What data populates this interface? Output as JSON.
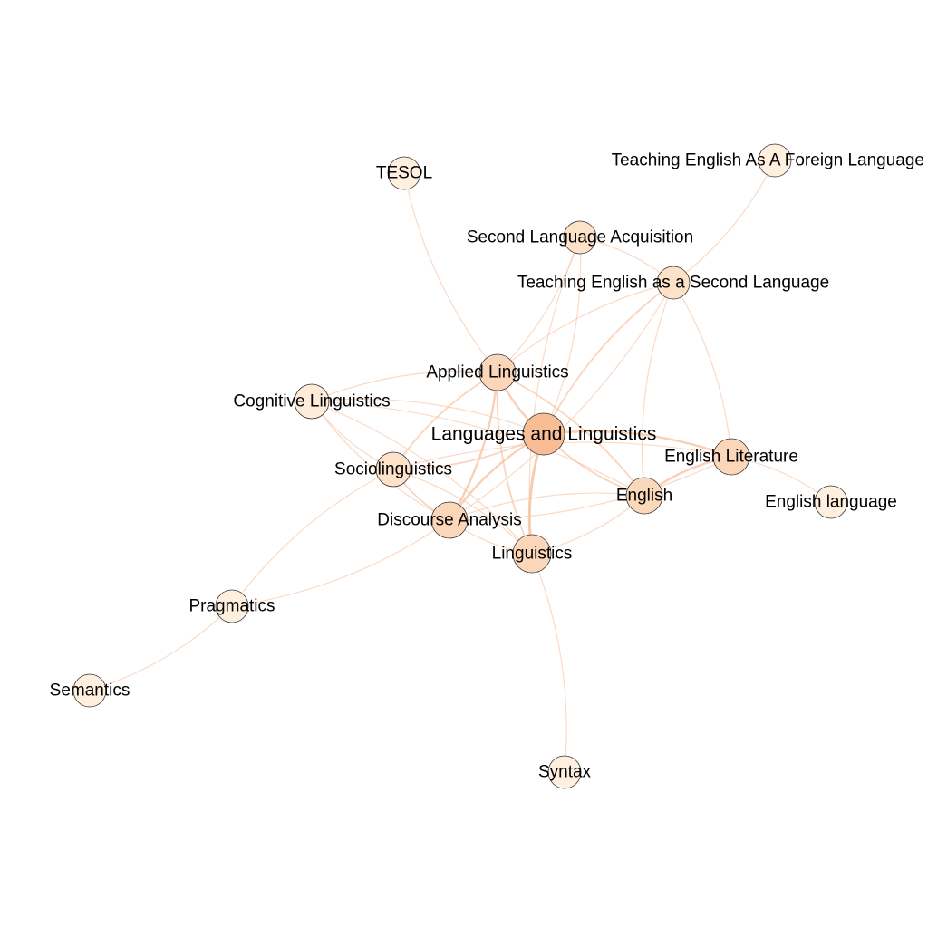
{
  "graph": {
    "nodes": [
      {
        "id": "languages",
        "label": "Languages and Linguistics",
        "color": "#f9bd95",
        "weight": 5
      },
      {
        "id": "applied",
        "label": "Applied Linguistics",
        "color": "#fcd6b8",
        "weight": 4
      },
      {
        "id": "english_lit",
        "label": "English Literature",
        "color": "#fcd6b8",
        "weight": 4
      },
      {
        "id": "english",
        "label": "English",
        "color": "#fcd8ba",
        "weight": 4
      },
      {
        "id": "discourse",
        "label": "Discourse Analysis",
        "color": "#fcd6b8",
        "weight": 4
      },
      {
        "id": "linguistics",
        "label": "Linguistics",
        "color": "#fcd6b8",
        "weight": 4
      },
      {
        "id": "socio",
        "label": "Sociolinguistics",
        "color": "#fde2c8",
        "weight": 3
      },
      {
        "id": "cognitive",
        "label": "Cognitive Linguistics",
        "color": "#feebd8",
        "weight": 2
      },
      {
        "id": "sla",
        "label": "Second Language Acquisition",
        "color": "#fde2c8",
        "weight": 3
      },
      {
        "id": "tesl",
        "label": "Teaching English as a Second Language",
        "color": "#fde2c8",
        "weight": 3
      },
      {
        "id": "tesol",
        "label": "TESOL",
        "color": "#feefdf",
        "weight": 1
      },
      {
        "id": "tefl",
        "label": "Teaching English As A Foreign Language",
        "color": "#feefdf",
        "weight": 1
      },
      {
        "id": "english_lang",
        "label": "English language",
        "color": "#feefdf",
        "weight": 1
      },
      {
        "id": "pragmatics",
        "label": "Pragmatics",
        "color": "#feefdf",
        "weight": 1
      },
      {
        "id": "semantics",
        "label": "Semantics",
        "color": "#feefdf",
        "weight": 1
      },
      {
        "id": "syntax",
        "label": "Syntax",
        "color": "#feefdf",
        "weight": 1
      }
    ],
    "edges": [
      {
        "source": "languages",
        "target": "linguistics",
        "weight": 4
      },
      {
        "source": "languages",
        "target": "applied",
        "weight": 3
      },
      {
        "source": "languages",
        "target": "discourse",
        "weight": 3
      },
      {
        "source": "languages",
        "target": "english_lit",
        "weight": 3
      },
      {
        "source": "languages",
        "target": "english",
        "weight": 2
      },
      {
        "source": "languages",
        "target": "socio",
        "weight": 2
      },
      {
        "source": "languages",
        "target": "cognitive",
        "weight": 1
      },
      {
        "source": "languages",
        "target": "tesl",
        "weight": 2
      },
      {
        "source": "languages",
        "target": "sla",
        "weight": 1
      },
      {
        "source": "applied",
        "target": "discourse",
        "weight": 3
      },
      {
        "source": "applied",
        "target": "socio",
        "weight": 2
      },
      {
        "source": "applied",
        "target": "english",
        "weight": 2
      },
      {
        "source": "applied",
        "target": "linguistics",
        "weight": 2
      },
      {
        "source": "applied",
        "target": "tesl",
        "weight": 1
      },
      {
        "source": "applied",
        "target": "sla",
        "weight": 1
      },
      {
        "source": "applied",
        "target": "tesol",
        "weight": 1
      },
      {
        "source": "applied",
        "target": "cognitive",
        "weight": 1
      },
      {
        "source": "english",
        "target": "english_lit",
        "weight": 3
      },
      {
        "source": "english",
        "target": "discourse",
        "weight": 1
      },
      {
        "source": "english",
        "target": "tesl",
        "weight": 1
      },
      {
        "source": "english",
        "target": "cognitive",
        "weight": 1
      },
      {
        "source": "english_lit",
        "target": "english_lang",
        "weight": 1
      },
      {
        "source": "english_lit",
        "target": "tesl",
        "weight": 1
      },
      {
        "source": "english_lit",
        "target": "discourse",
        "weight": 1
      },
      {
        "source": "english_lit",
        "target": "socio",
        "weight": 1
      },
      {
        "source": "discourse",
        "target": "socio",
        "weight": 2
      },
      {
        "source": "discourse",
        "target": "linguistics",
        "weight": 1
      },
      {
        "source": "discourse",
        "target": "pragmatics",
        "weight": 1
      },
      {
        "source": "discourse",
        "target": "tesl",
        "weight": 1
      },
      {
        "source": "discourse",
        "target": "cognitive",
        "weight": 1
      },
      {
        "source": "linguistics",
        "target": "socio",
        "weight": 1
      },
      {
        "source": "linguistics",
        "target": "syntax",
        "weight": 1
      },
      {
        "source": "linguistics",
        "target": "english",
        "weight": 1
      },
      {
        "source": "linguistics",
        "target": "sla",
        "weight": 1
      },
      {
        "source": "linguistics",
        "target": "cognitive",
        "weight": 1
      },
      {
        "source": "socio",
        "target": "cognitive",
        "weight": 1
      },
      {
        "source": "socio",
        "target": "pragmatics",
        "weight": 1
      },
      {
        "source": "sla",
        "target": "tesl",
        "weight": 1
      },
      {
        "source": "tesl",
        "target": "tefl",
        "weight": 1
      },
      {
        "source": "pragmatics",
        "target": "semantics",
        "weight": 1
      }
    ],
    "edge_color": "#f7c4a4"
  }
}
